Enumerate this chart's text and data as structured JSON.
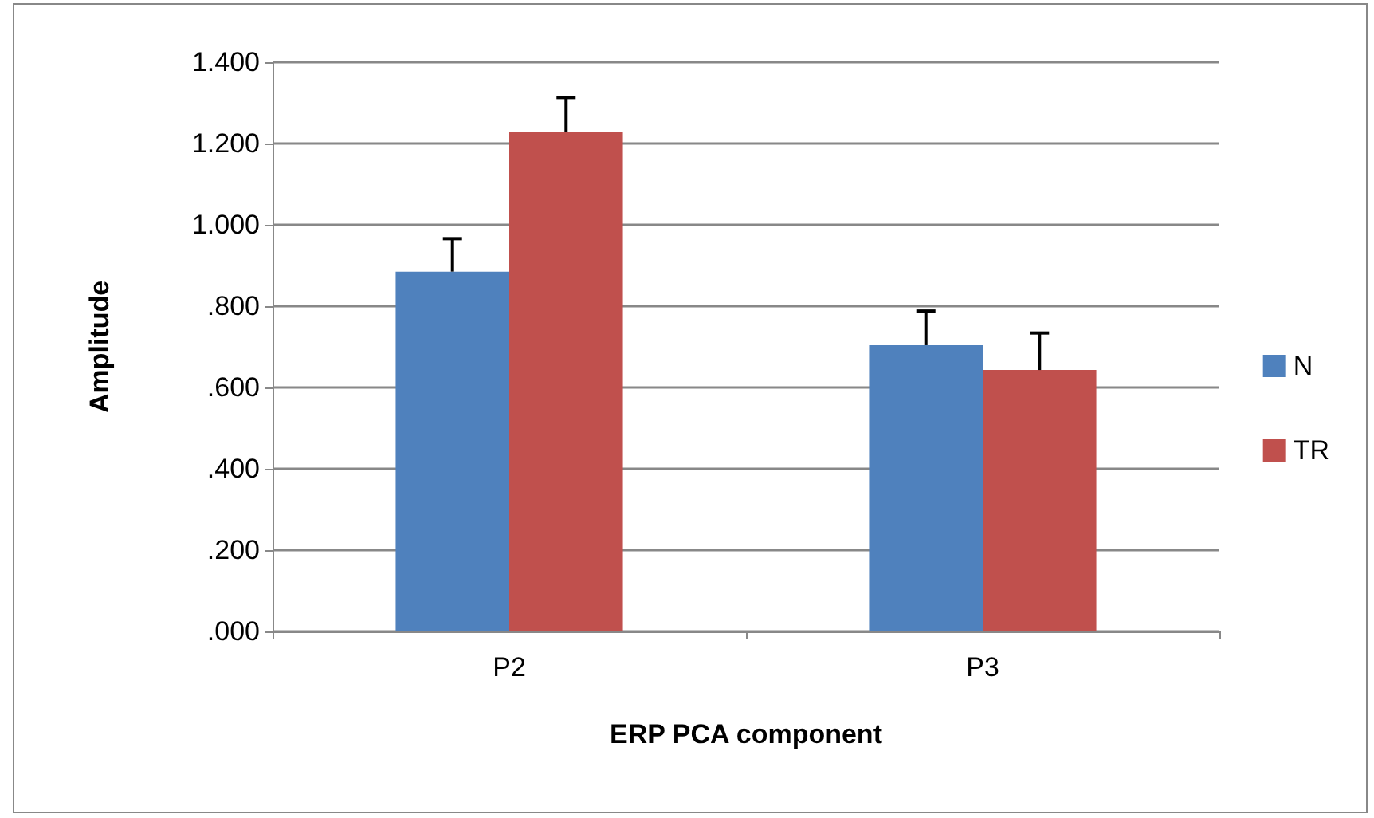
{
  "chart_data": {
    "type": "bar",
    "xlabel": "ERP PCA component",
    "ylabel": "Amplitude",
    "categories": [
      "P2",
      "P3"
    ],
    "series": [
      {
        "name": "N",
        "color": "#4f81bd",
        "values": [
          0.885,
          0.704
        ],
        "errors": [
          [
            0.885,
            0.966
          ],
          [
            0.704,
            0.788
          ]
        ]
      },
      {
        "name": "TR",
        "color": "#c0504d",
        "values": [
          1.228,
          0.643
        ],
        "errors": [
          [
            1.228,
            1.313
          ],
          [
            0.643,
            0.734
          ]
        ]
      }
    ],
    "ylim": [
      0,
      1.4
    ],
    "yticks": [
      {
        "value": 0,
        "label": ".000"
      },
      {
        "value": 0.2,
        "label": ".200"
      },
      {
        "value": 0.4,
        "label": ".400"
      },
      {
        "value": 0.6,
        "label": ".600"
      },
      {
        "value": 0.8,
        "label": ".800"
      },
      {
        "value": 1,
        "label": "1.000"
      },
      {
        "value": 1.2,
        "label": "1.200"
      },
      {
        "value": 1.4,
        "label": "1.400"
      }
    ],
    "grid": "y",
    "legend": "right"
  }
}
